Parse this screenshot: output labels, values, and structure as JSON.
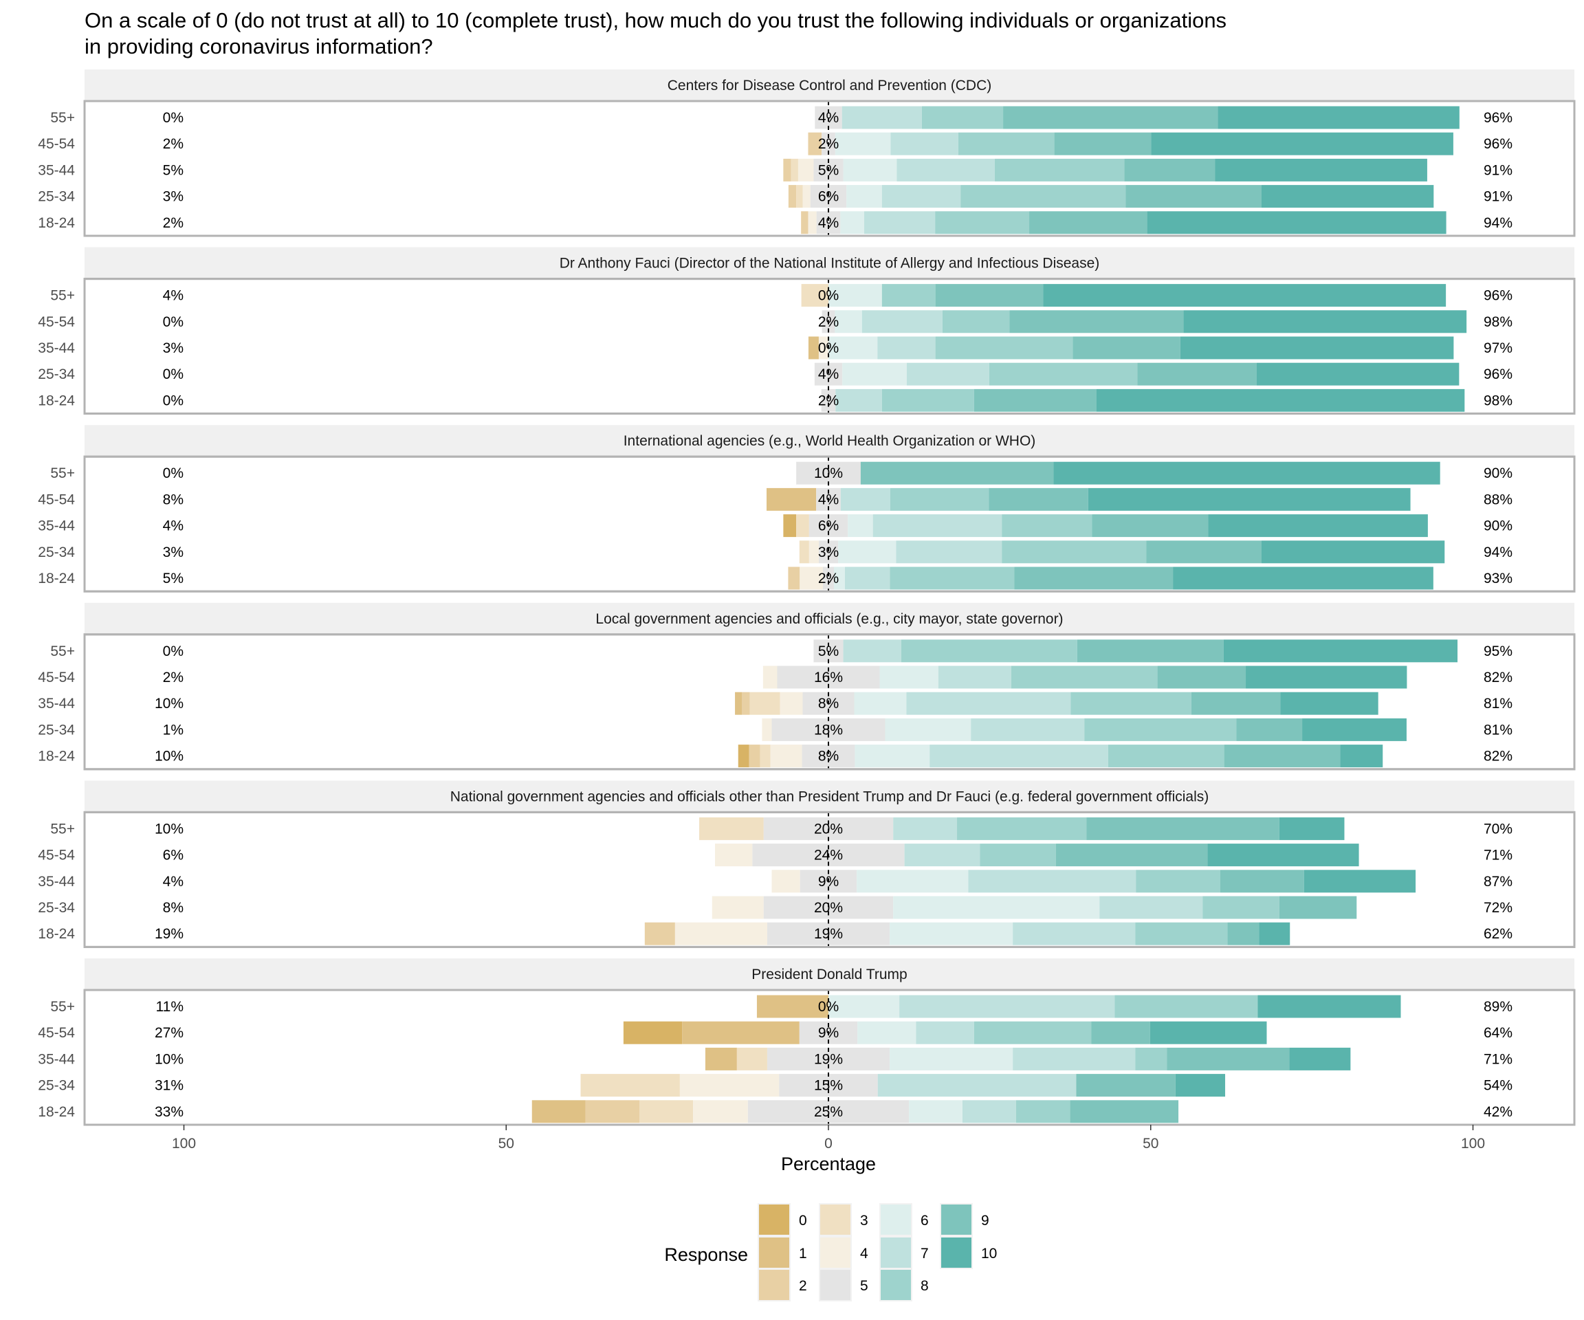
{
  "chart_data": {
    "type": "bar",
    "subtype": "diverging-stacked-horizontal-faceted",
    "title_lines": [
      "On a scale of 0 (do not trust at all) to 10 (complete trust), how much do you trust the following individuals or organizations",
      "in providing coronavirus information?"
    ],
    "xlabel": "Percentage",
    "ylabel": "",
    "xlim": [
      -115,
      115
    ],
    "x_ticks": [
      -100,
      -50,
      0,
      50,
      100
    ],
    "x_tick_labels": [
      "100",
      "50",
      "0",
      "50",
      "100"
    ],
    "legend": {
      "title": "Response",
      "position": "bottom",
      "levels": [
        "0",
        "1",
        "2",
        "3",
        "4",
        "5",
        "6",
        "7",
        "8",
        "9",
        "10"
      ],
      "colors": [
        "#D8B365",
        "#DFC185",
        "#E8D0A4",
        "#F0E0C2",
        "#F6EFE1",
        "#E4E4E4",
        "#DEEFED",
        "#BFE1DE",
        "#9ED3CD",
        "#7EC4BC",
        "#5AB4AC"
      ]
    },
    "categories": [
      "55+",
      "45-54",
      "35-44",
      "25-34",
      "18-24"
    ],
    "facets": [
      {
        "title": "Centers for Disease Control and Prevention (CDC)",
        "rows": [
          {
            "group": "55+",
            "values": [
              0,
              0,
              0,
              0,
              0,
              4.2,
              0,
              12.4,
              12.6,
              33.3,
              37.5
            ],
            "left_label": "0%",
            "neutral_label": "4%",
            "right_label": "96%"
          },
          {
            "group": "45-54",
            "values": [
              0,
              0,
              2.1,
              0,
              0,
              2.1,
              8.6,
              10.5,
              14.9,
              15.0,
              46.9
            ],
            "left_label": "2%",
            "neutral_label": "2%",
            "right_label": "96%"
          },
          {
            "group": "35-44",
            "values": [
              0,
              0,
              1.2,
              1.1,
              2.4,
              4.6,
              8.3,
              15.2,
              20.1,
              14.1,
              32.9
            ],
            "left_label": "5%",
            "neutral_label": "5%",
            "right_label": "91%"
          },
          {
            "group": "25-34",
            "values": [
              0,
              0,
              1.2,
              1.0,
              1.2,
              5.6,
              5.5,
              12.2,
              25.6,
              21.1,
              26.7
            ],
            "left_label": "3%",
            "neutral_label": "6%",
            "right_label": "91%"
          },
          {
            "group": "18-24",
            "values": [
              0,
              0,
              1.1,
              0,
              1.3,
              3.7,
              3.7,
              11.0,
              14.6,
              18.3,
              46.4
            ],
            "left_label": "2%",
            "neutral_label": "4%",
            "right_label": "94%"
          }
        ]
      },
      {
        "title": "Dr Anthony Fauci (Director of the National Institute of Allergy and Infectious Disease)",
        "rows": [
          {
            "group": "55+",
            "values": [
              0,
              0,
              0,
              4.2,
              0,
              0,
              8.3,
              0,
              8.3,
              16.7,
              62.5
            ],
            "left_label": "4%",
            "neutral_label": "0%",
            "right_label": "96%"
          },
          {
            "group": "45-54",
            "values": [
              0,
              0,
              0,
              0,
              0,
              2.0,
              4.2,
              12.5,
              10.4,
              27.0,
              43.9
            ],
            "left_label": "0%",
            "neutral_label": "2%",
            "right_label": "98%"
          },
          {
            "group": "35-44",
            "values": [
              0,
              1.6,
              0,
              0,
              1.5,
              0,
              7.6,
              9.0,
              21.3,
              16.7,
              42.4
            ],
            "left_label": "3%",
            "neutral_label": "0%",
            "right_label": "97%"
          },
          {
            "group": "25-34",
            "values": [
              0,
              0,
              0,
              0,
              0,
              4.3,
              10.0,
              12.8,
              23.0,
              18.5,
              31.4
            ],
            "left_label": "0%",
            "neutral_label": "4%",
            "right_label": "96%"
          },
          {
            "group": "18-24",
            "values": [
              0,
              0,
              0,
              0,
              0,
              2.2,
              0,
              7.2,
              14.3,
              19.0,
              57.1
            ],
            "left_label": "0%",
            "neutral_label": "2%",
            "right_label": "98%"
          }
        ]
      },
      {
        "title": "International agencies (e.g., World Health Organization or WHO)",
        "rows": [
          {
            "group": "55+",
            "values": [
              0,
              0,
              0,
              0,
              0,
              10.0,
              0,
              0,
              0,
              29.9,
              60.0
            ],
            "left_label": "0%",
            "neutral_label": "10%",
            "right_label": "90%"
          },
          {
            "group": "45-54",
            "values": [
              0,
              7.7,
              0,
              0,
              0,
              3.8,
              0,
              7.7,
              15.3,
              15.4,
              50.0
            ],
            "left_label": "8%",
            "neutral_label": "4%",
            "right_label": "88%"
          },
          {
            "group": "35-44",
            "values": [
              2.0,
              0,
              0,
              2.0,
              0,
              6.0,
              3.9,
              20.0,
              14.0,
              18.0,
              34.1
            ],
            "left_label": "4%",
            "neutral_label": "6%",
            "right_label": "90%"
          },
          {
            "group": "25-34",
            "values": [
              0,
              0,
              0,
              1.5,
              1.5,
              3.0,
              9.0,
              16.4,
              22.4,
              17.9,
              28.4
            ],
            "left_label": "3%",
            "neutral_label": "3%",
            "right_label": "94%"
          },
          {
            "group": "18-24",
            "values": [
              0,
              0,
              1.8,
              0,
              3.6,
              1.7,
              1.7,
              7.0,
              19.3,
              24.6,
              40.4
            ],
            "left_label": "5%",
            "neutral_label": "2%",
            "right_label": "93%"
          }
        ]
      },
      {
        "title": "Local government agencies and officials (e.g., city mayor, state governor)",
        "rows": [
          {
            "group": "55+",
            "values": [
              0,
              0,
              0,
              0,
              0,
              4.6,
              0,
              9.0,
              27.3,
              22.7,
              36.3
            ],
            "left_label": "0%",
            "neutral_label": "5%",
            "right_label": "95%"
          },
          {
            "group": "45-54",
            "values": [
              0,
              0,
              0,
              0,
              2.2,
              15.9,
              9.1,
              11.3,
              22.7,
              13.7,
              25.0
            ],
            "left_label": "2%",
            "neutral_label": "16%",
            "right_label": "82%"
          },
          {
            "group": "35-44",
            "values": [
              0,
              1.1,
              1.2,
              4.7,
              3.5,
              8.0,
              8.1,
              25.5,
              18.7,
              13.8,
              15.2
            ],
            "left_label": "10%",
            "neutral_label": "8%",
            "right_label": "81%"
          },
          {
            "group": "25-34",
            "values": [
              0,
              0,
              0,
              0,
              1.5,
              17.6,
              13.3,
              17.6,
              23.6,
              10.2,
              16.2
            ],
            "left_label": "1%",
            "neutral_label": "18%",
            "right_label": "81%"
          },
          {
            "group": "18-24",
            "values": [
              1.7,
              0,
              1.7,
              1.6,
              4.9,
              8.2,
              11.6,
              27.7,
              18.0,
              18.0,
              6.6
            ],
            "left_label": "10%",
            "neutral_label": "8%",
            "right_label": "82%"
          }
        ]
      },
      {
        "title": "National government agencies and officials other than President Trump and Dr Fauci (e.g. federal government officials)",
        "rows": [
          {
            "group": "55+",
            "values": [
              0,
              0,
              0,
              10.0,
              0,
              20.1,
              0,
              9.9,
              20.1,
              29.9,
              10.1
            ],
            "left_label": "10%",
            "neutral_label": "20%",
            "right_label": "70%"
          },
          {
            "group": "45-54",
            "values": [
              0,
              0,
              0,
              0,
              5.8,
              23.6,
              0,
              11.7,
              11.8,
              23.5,
              23.5
            ],
            "left_label": "6%",
            "neutral_label": "24%",
            "right_label": "71%"
          },
          {
            "group": "35-44",
            "values": [
              0,
              0,
              0,
              0,
              4.4,
              8.8,
              17.3,
              26.0,
              13.1,
              13.0,
              17.3
            ],
            "left_label": "4%",
            "neutral_label": "9%",
            "right_label": "87%"
          },
          {
            "group": "25-34",
            "values": [
              0,
              0,
              0,
              0,
              8.0,
              20.1,
              32.0,
              16.0,
              11.9,
              12.0,
              0
            ],
            "left_label": "8%",
            "neutral_label": "20%",
            "right_label": "72%"
          },
          {
            "group": "18-24",
            "values": [
              0,
              0,
              4.7,
              0,
              14.3,
              19.0,
              19.1,
              19.0,
              14.3,
              4.9,
              4.8
            ],
            "left_label": "19%",
            "neutral_label": "19%",
            "right_label": "62%"
          }
        ]
      },
      {
        "title": "President Donald Trump",
        "rows": [
          {
            "group": "55+",
            "values": [
              0,
              11.1,
              0,
              0,
              0,
              0,
              11.0,
              33.4,
              22.2,
              0,
              22.2
            ],
            "left_label": "11%",
            "neutral_label": "0%",
            "right_label": "89%"
          },
          {
            "group": "45-54",
            "values": [
              9.1,
              18.2,
              0,
              0,
              0,
              9.0,
              9.1,
              9.0,
              18.2,
              9.1,
              18.1
            ],
            "left_label": "27%",
            "neutral_label": "9%",
            "right_label": "64%"
          },
          {
            "group": "35-44",
            "values": [
              0,
              4.9,
              0,
              4.7,
              0,
              19.0,
              19.1,
              19.0,
              4.9,
              19.0,
              9.5
            ],
            "left_label": "10%",
            "neutral_label": "19%",
            "right_label": "71%"
          },
          {
            "group": "25-34",
            "values": [
              0,
              0,
              0,
              15.4,
              15.4,
              15.3,
              0,
              30.8,
              0,
              15.4,
              7.7
            ],
            "left_label": "31%",
            "neutral_label": "15%",
            "right_label": "54%"
          },
          {
            "group": "18-24",
            "values": [
              0,
              8.3,
              8.4,
              8.3,
              8.5,
              25.0,
              8.3,
              8.3,
              8.4,
              16.8,
              0
            ],
            "left_label": "33%",
            "neutral_label": "25%",
            "right_label": "42%"
          }
        ]
      }
    ]
  }
}
